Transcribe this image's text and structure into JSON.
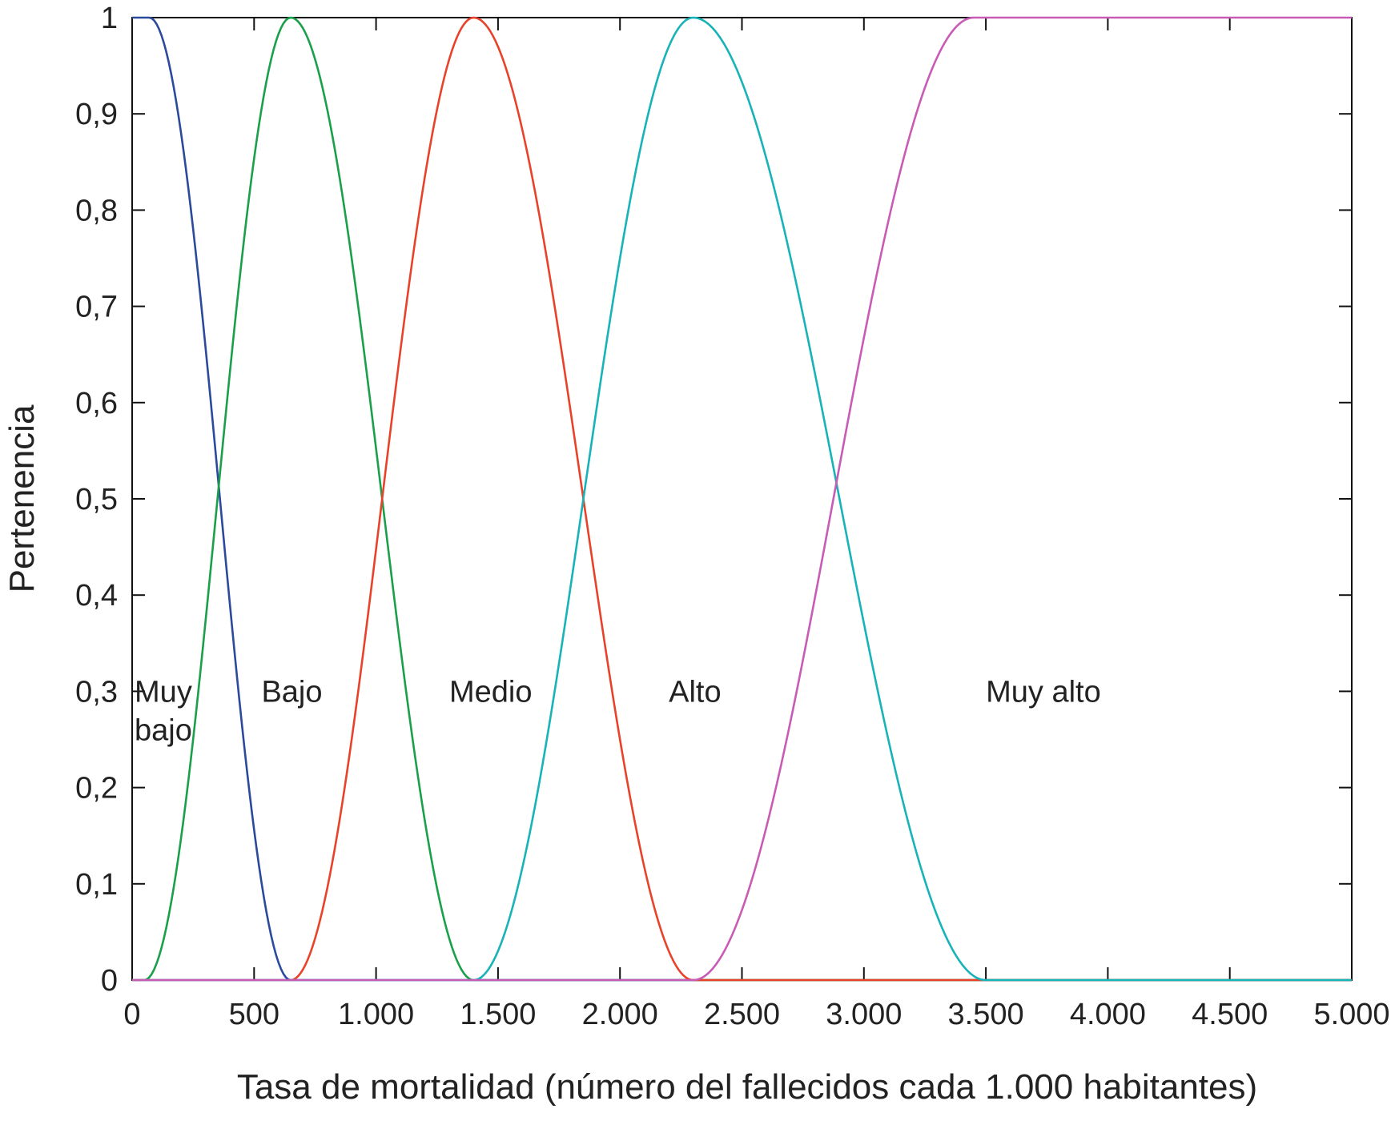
{
  "chart_data": {
    "type": "line",
    "xlabel": "Tasa de mortalidad (número del fallecidos cada 1.000 habitantes)",
    "ylabel": "Pertenencia",
    "xlim": [
      0,
      5000
    ],
    "ylim": [
      0,
      1
    ],
    "grid": false,
    "x_ticks": [
      {
        "value": 0,
        "label": "0"
      },
      {
        "value": 500,
        "label": "500"
      },
      {
        "value": 1000,
        "label": "1.000"
      },
      {
        "value": 1500,
        "label": "1.500"
      },
      {
        "value": 2000,
        "label": "2.000"
      },
      {
        "value": 2500,
        "label": "2.500"
      },
      {
        "value": 3000,
        "label": "3.000"
      },
      {
        "value": 3500,
        "label": "3.500"
      },
      {
        "value": 4000,
        "label": "4.000"
      },
      {
        "value": 4500,
        "label": "4.500"
      },
      {
        "value": 5000,
        "label": "5.000"
      }
    ],
    "y_ticks": [
      {
        "value": 0,
        "label": "0"
      },
      {
        "value": 0.1,
        "label": "0,1"
      },
      {
        "value": 0.2,
        "label": "0,2"
      },
      {
        "value": 0.3,
        "label": "0,3"
      },
      {
        "value": 0.4,
        "label": "0,4"
      },
      {
        "value": 0.5,
        "label": "0,5"
      },
      {
        "value": 0.6,
        "label": "0,6"
      },
      {
        "value": 0.7,
        "label": "0,7"
      },
      {
        "value": 0.8,
        "label": "0,8"
      },
      {
        "value": 0.9,
        "label": "0,9"
      },
      {
        "value": 1,
        "label": "1"
      }
    ],
    "series": [
      {
        "color": "#2b4a9c",
        "shape": "z",
        "points": [
          [
            0,
            1
          ],
          [
            70,
            1
          ],
          [
            650,
            0
          ],
          [
            5000,
            0
          ]
        ]
      },
      {
        "color": "#1aa04a",
        "shape": "pi",
        "points": [
          [
            0,
            0
          ],
          [
            50,
            0
          ],
          [
            650,
            1
          ],
          [
            1400,
            0
          ],
          [
            5000,
            0
          ]
        ]
      },
      {
        "color": "#e8432a",
        "shape": "pi",
        "points": [
          [
            0,
            0
          ],
          [
            650,
            0
          ],
          [
            1400,
            1
          ],
          [
            2300,
            0
          ],
          [
            5000,
            0
          ]
        ]
      },
      {
        "color": "#18b3b8",
        "shape": "pi",
        "points": [
          [
            0,
            0
          ],
          [
            1400,
            0
          ],
          [
            2300,
            1
          ],
          [
            3500,
            0
          ],
          [
            5000,
            0
          ]
        ]
      },
      {
        "color": "#c85bb5",
        "shape": "s",
        "points": [
          [
            0,
            0
          ],
          [
            2300,
            0
          ],
          [
            3450,
            1
          ],
          [
            5000,
            1
          ]
        ]
      }
    ],
    "annotations": [
      {
        "text": "Muy",
        "x": 10,
        "y": 0.3
      },
      {
        "text": "bajo",
        "x": 10,
        "y": 0.26
      },
      {
        "text": "Bajo",
        "x": 530,
        "y": 0.3
      },
      {
        "text": "Medio",
        "x": 1300,
        "y": 0.3
      },
      {
        "text": "Alto",
        "x": 2200,
        "y": 0.3
      },
      {
        "text": "Muy alto",
        "x": 3500,
        "y": 0.3
      }
    ]
  }
}
